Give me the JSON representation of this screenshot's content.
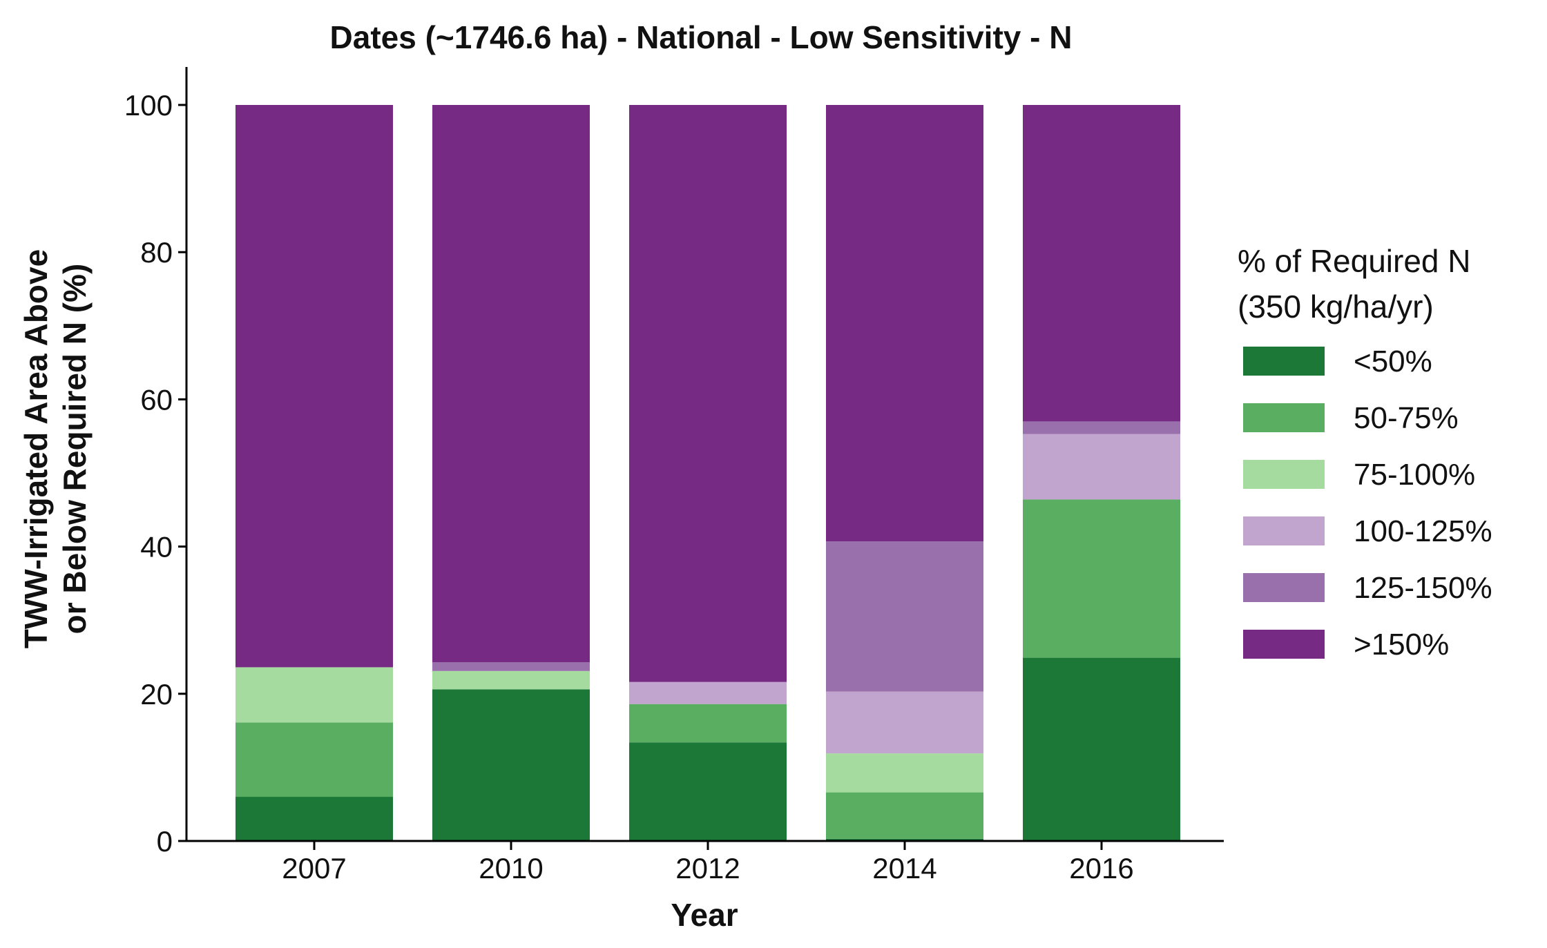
{
  "chart_data": {
    "type": "bar",
    "stacked": true,
    "title": "Dates (~1746.6 ha) - National - Low Sensitivity - N",
    "xlabel": "Year",
    "ylabel_lines": [
      "TWW-Irrigated Area Above",
      "or Below Required N (%)"
    ],
    "ylim": [
      0,
      105
    ],
    "yticks": [
      0,
      20,
      40,
      60,
      80,
      100
    ],
    "categories": [
      "2007",
      "2010",
      "2012",
      "2014",
      "2016"
    ],
    "legend": {
      "title_lines": [
        "% of Required N",
        "(350 kg/ha/yr)"
      ],
      "position": "right"
    },
    "grid": false,
    "series": [
      {
        "name": "<50%",
        "color": "#1b7837",
        "values": [
          6.0,
          20.6,
          13.4,
          0.3,
          24.9
        ]
      },
      {
        "name": "50-75%",
        "color": "#5aae61",
        "values": [
          10.1,
          0.0,
          5.2,
          6.3,
          21.5
        ]
      },
      {
        "name": "75-100%",
        "color": "#a6dba0",
        "values": [
          7.5,
          2.5,
          0.0,
          5.3,
          0.0
        ]
      },
      {
        "name": "100-125%",
        "color": "#c2a5cf",
        "values": [
          0.0,
          0.0,
          3.0,
          8.4,
          8.9
        ]
      },
      {
        "name": "125-150%",
        "color": "#9970ab",
        "values": [
          0.0,
          1.2,
          0.0,
          20.4,
          1.7
        ]
      },
      {
        "name": ">150%",
        "color": "#762a83",
        "values": [
          76.4,
          75.7,
          78.4,
          59.3,
          43.0
        ]
      }
    ]
  }
}
